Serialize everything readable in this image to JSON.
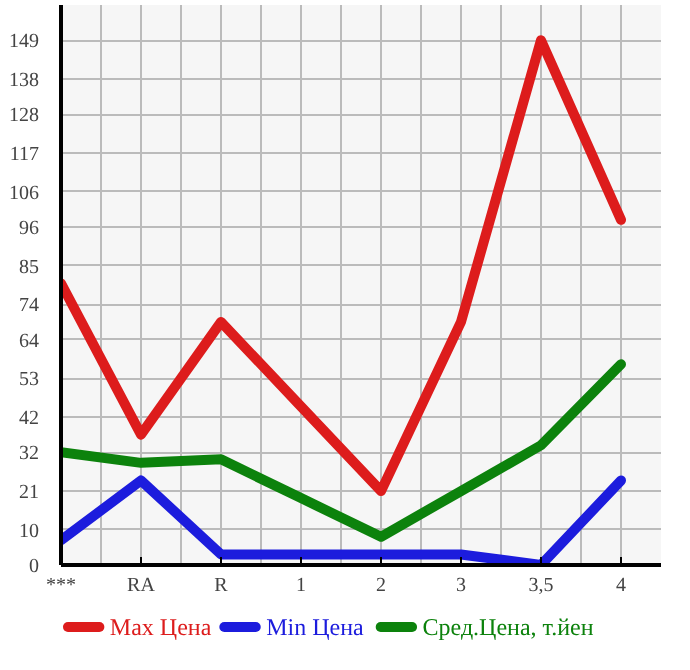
{
  "chart_data": {
    "type": "line",
    "categories": [
      "***",
      "RA",
      "R",
      "1",
      "2",
      "3",
      "3,5",
      "4"
    ],
    "series": [
      {
        "name": "Max Цена",
        "color": "#dd1c1c",
        "values": [
          80,
          37,
          69,
          45,
          21,
          69,
          149,
          98
        ]
      },
      {
        "name": "Min Цена",
        "color": "#1c1cdd",
        "values": [
          7,
          24,
          3,
          3,
          3,
          3,
          0,
          24
        ]
      },
      {
        "name": "Сред.Цена, т.йен",
        "color": "#0c820c",
        "values": [
          32,
          29,
          30,
          19,
          8,
          21,
          34,
          57
        ]
      }
    ],
    "ylim": [
      0,
      159
    ],
    "yticks": [
      0,
      10,
      21,
      32,
      42,
      53,
      64,
      74,
      85,
      96,
      106,
      117,
      128,
      138,
      149
    ],
    "grid": true,
    "legend": "bottom",
    "marker": "none",
    "line_style": "solid"
  }
}
